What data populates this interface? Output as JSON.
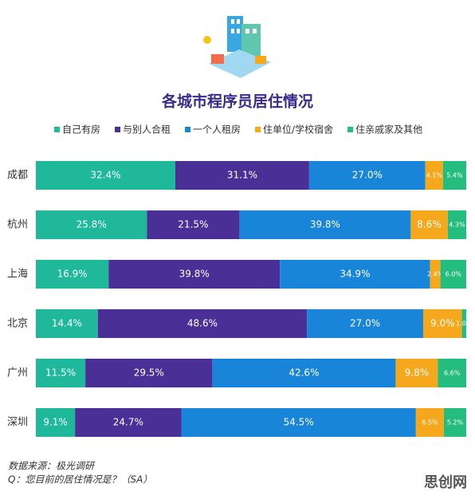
{
  "chart_data": {
    "type": "stacked-barh",
    "title": "各城市程序员居住情况",
    "categories": [
      "成都",
      "杭州",
      "上海",
      "北京",
      "广州",
      "深圳"
    ],
    "series": [
      {
        "name": "自己有房",
        "color": "#1fb89b",
        "values": [
          32.4,
          25.8,
          16.9,
          14.4,
          11.5,
          9.1
        ],
        "value_labels": [
          "32.4%",
          "25.8%",
          "16.9%",
          "14.4%",
          "11.5%",
          "9.1%"
        ]
      },
      {
        "name": "与别人合租",
        "color": "#4a2f96",
        "values": [
          31.1,
          21.5,
          39.8,
          48.6,
          29.5,
          24.7
        ],
        "value_labels": [
          "31.1%",
          "21.5%",
          "39.8%",
          "48.6%",
          "29.5%",
          "24.7%"
        ]
      },
      {
        "name": "一个人租房",
        "color": "#1985d8",
        "values": [
          27.0,
          39.8,
          34.9,
          27.0,
          42.6,
          54.5
        ],
        "value_labels": [
          "27.0%",
          "39.8%",
          "34.9%",
          "27.0%",
          "42.6%",
          "54.5%"
        ]
      },
      {
        "name": "住单位/学校宿舍",
        "color": "#f5a81c",
        "values": [
          4.1,
          8.6,
          2.4,
          9.0,
          9.8,
          6.5
        ],
        "value_labels": [
          "4.1%",
          "8.6%",
          "2.4%",
          "9.0%",
          "9.8%",
          "6.5%"
        ]
      },
      {
        "name": "住亲戚家及其他",
        "color": "#25bd7d",
        "values": [
          5.4,
          4.3,
          6.0,
          1.0,
          6.6,
          5.2
        ],
        "value_labels": [
          "5.4%",
          "4.3%",
          "6.0%",
          "1.0%",
          "6.6%",
          "5.2%"
        ]
      }
    ],
    "xlim": [
      0,
      100
    ],
    "source": "数据来源：极光调研",
    "question": "Q：您目前的居住情况是？（SA）",
    "watermark": "思创网"
  }
}
